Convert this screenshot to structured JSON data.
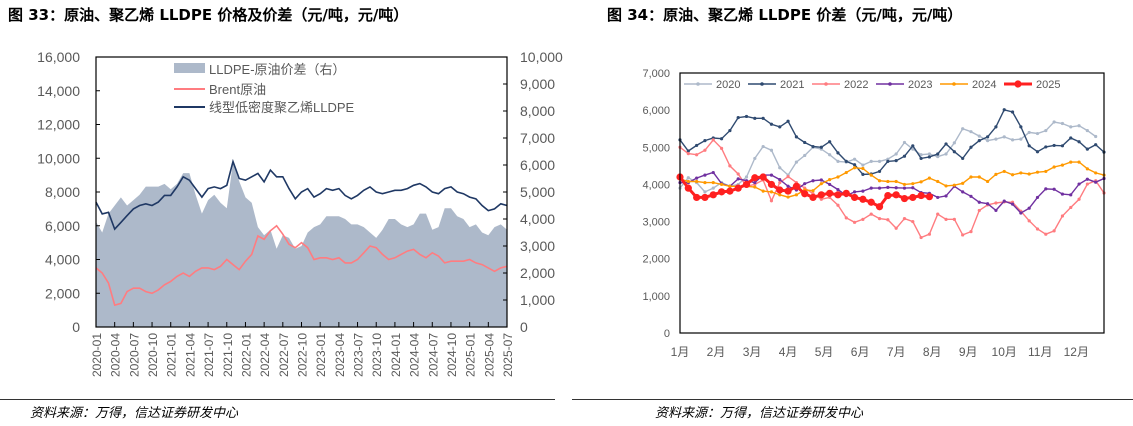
{
  "left": {
    "title": "图 33：原油、聚乙烯 LLDPE 价格及价差（元/吨，元/吨）",
    "source": "资料来源：万得，信达证券研发中心"
  },
  "right": {
    "title": "图 34：原油、聚乙烯 LLDPE 价差（元/吨，元/吨）",
    "source": "资料来源：万得，信达证券研发中心"
  },
  "chart_data": [
    {
      "type": "line+area",
      "x_start": "2020-01",
      "x_end": "2025-07",
      "x_step": "month",
      "xticks": [
        "2020-01",
        "2020-04",
        "2020-07",
        "2020-10",
        "2021-01",
        "2021-04",
        "2021-07",
        "2021-10",
        "2022-01",
        "2022-04",
        "2022-07",
        "2022-10",
        "2023-01",
        "2023-04",
        "2023-07",
        "2023-10",
        "2024-01",
        "2024-04",
        "2024-07",
        "2024-10",
        "2025-01",
        "2025-04",
        "2025-07"
      ],
      "ylim_left": [
        0,
        16000
      ],
      "yticks_left": [
        "0",
        "2,000",
        "4,000",
        "6,000",
        "8,000",
        "10,000",
        "12,000",
        "14,000",
        "16,000"
      ],
      "ylim_right": [
        0,
        10000
      ],
      "yticks_right": [
        "0",
        "1,000",
        "2,000",
        "3,000",
        "4,000",
        "5,000",
        "6,000",
        "7,000",
        "8,000",
        "9,000",
        "10,000"
      ],
      "legend": "top-center",
      "series": [
        {
          "name": "LLDPE-原油价差（右）",
          "kind": "area",
          "axis": "right",
          "color": "#adb9ca",
          "values": [
            3900,
            3500,
            4200,
            4500,
            4800,
            4500,
            4700,
            4900,
            5200,
            5200,
            5200,
            5300,
            5100,
            5300,
            5700,
            5700,
            4900,
            4200,
            4700,
            4900,
            4600,
            4400,
            6100,
            5400,
            4800,
            4600,
            3700,
            3400,
            3600,
            2900,
            3400,
            3300,
            2900,
            3000,
            3500,
            3700,
            3800,
            4100,
            4100,
            4100,
            4000,
            3800,
            3800,
            3700,
            3500,
            3300,
            3600,
            4000,
            4000,
            3800,
            3700,
            3800,
            4200,
            4200,
            3600,
            3700,
            4400,
            4400,
            4100,
            4000,
            3700,
            3800,
            3500,
            3400,
            3700,
            3800,
            3600
          ]
        },
        {
          "name": "Brent原油",
          "kind": "line",
          "axis": "left",
          "color": "#ff7c80",
          "values": [
            3500,
            3200,
            2600,
            1300,
            1400,
            2100,
            2300,
            2300,
            2100,
            2000,
            2200,
            2500,
            2700,
            3000,
            3200,
            3000,
            3300,
            3500,
            3500,
            3400,
            3600,
            4000,
            3700,
            3400,
            3900,
            4300,
            5400,
            5200,
            5700,
            6000,
            5500,
            4900,
            4700,
            5000,
            4700,
            4000,
            4100,
            4100,
            4000,
            4100,
            3800,
            3800,
            4000,
            4400,
            4800,
            4700,
            4300,
            4000,
            4100,
            4300,
            4500,
            4600,
            4300,
            4100,
            4400,
            4200,
            3800,
            3900,
            3900,
            3900,
            4000,
            3800,
            3700,
            3500,
            3300,
            3500,
            3600
          ]
        },
        {
          "name": "线型低密度聚乙烯LLDPE",
          "kind": "line",
          "axis": "left",
          "color": "#1f3864",
          "values": [
            7400,
            6700,
            6800,
            5800,
            6200,
            6600,
            7000,
            7200,
            7300,
            7200,
            7400,
            7800,
            7800,
            8300,
            8900,
            8700,
            8200,
            7700,
            8200,
            8300,
            8200,
            8400,
            9800,
            8800,
            8700,
            8900,
            9100,
            8600,
            9300,
            8900,
            8900,
            8200,
            7600,
            8000,
            8200,
            7700,
            7900,
            8200,
            8100,
            8200,
            7800,
            7600,
            7800,
            8100,
            8300,
            8000,
            7900,
            8000,
            8100,
            8100,
            8200,
            8400,
            8500,
            8300,
            8000,
            7900,
            8200,
            8300,
            8000,
            7900,
            7700,
            7600,
            7200,
            6900,
            7000,
            7300,
            7200
          ]
        }
      ]
    },
    {
      "type": "line",
      "x_step": "week",
      "xticks": [
        "1月",
        "2月",
        "3月",
        "4月",
        "5月",
        "6月",
        "7月",
        "8月",
        "9月",
        "10月",
        "11月",
        "12月"
      ],
      "ylim": [
        0,
        7000
      ],
      "yticks": [
        "0",
        "1,000",
        "2,000",
        "3,000",
        "4,000",
        "5,000",
        "6,000",
        "7,000"
      ],
      "legend": "top",
      "series": [
        {
          "name": "2020",
          "color": "#adb9ca",
          "values": [
            3900,
            4180,
            4050,
            3800,
            3900,
            4050,
            3950,
            4000,
            4200,
            4700,
            5020,
            4920,
            4450,
            4250,
            4600,
            4780,
            5000,
            4950,
            4800,
            4620,
            4600,
            4680,
            4520,
            4620,
            4620,
            4680,
            4820,
            5130,
            4950,
            4800,
            4820,
            4750,
            4820,
            5120,
            5500,
            5420,
            5300,
            5180,
            5220,
            5280,
            5200,
            5220,
            5400,
            5370,
            5450,
            5680,
            5640,
            5550,
            5580,
            5450,
            5290
          ]
        },
        {
          "name": "2021",
          "color": "#2f4a70",
          "values": [
            5200,
            4900,
            5050,
            5180,
            5250,
            5230,
            5450,
            5800,
            5830,
            5780,
            5780,
            5620,
            5550,
            5700,
            5280,
            5130,
            5020,
            5000,
            5150,
            4850,
            4620,
            4530,
            4270,
            4280,
            4350,
            4620,
            4640,
            4760,
            5040,
            4700,
            4740,
            4820,
            5090,
            4880,
            4700,
            5000,
            5180,
            5280,
            5550,
            6010,
            5950,
            5550,
            5040,
            4880,
            5010,
            5050,
            5040,
            5250,
            5150,
            4950,
            5070,
            4870
          ]
        },
        {
          "name": "2022",
          "color": "#ff7c80",
          "values": [
            5000,
            4830,
            4800,
            4920,
            5200,
            4970,
            4500,
            4280,
            3950,
            4000,
            4120,
            3560,
            4050,
            4210,
            4050,
            3900,
            3750,
            3600,
            3650,
            3440,
            3100,
            2980,
            3060,
            3200,
            3080,
            3050,
            2820,
            3080,
            3000,
            2570,
            2660,
            3200,
            3060,
            3060,
            2640,
            2730,
            3300,
            3450,
            3500,
            3530,
            3520,
            3280,
            3020,
            2800,
            2660,
            2750,
            3150,
            3380,
            3600,
            4010,
            4100,
            3770
          ]
        },
        {
          "name": "2023",
          "color": "#7030a0",
          "values": [
            4050,
            4050,
            4170,
            4250,
            4320,
            4020,
            3950,
            4150,
            4100,
            4050,
            4250,
            4250,
            4130,
            3950,
            3850,
            4020,
            4100,
            4120,
            4000,
            3860,
            3700,
            3800,
            3820,
            3900,
            3900,
            3920,
            3910,
            3900,
            3910,
            3780,
            3760,
            3650,
            3690,
            3950,
            3800,
            3680,
            3520,
            3480,
            3300,
            3550,
            3470,
            3230,
            3360,
            3650,
            3880,
            3870,
            3740,
            3720,
            4010,
            4140,
            4060,
            4160
          ]
        },
        {
          "name": "2024",
          "color": "#ff9900",
          "values": [
            4150,
            4080,
            4080,
            4050,
            4050,
            4000,
            3950,
            3950,
            3950,
            3930,
            3820,
            3800,
            3720,
            3660,
            3720,
            3850,
            3830,
            4020,
            4130,
            4200,
            4320,
            4450,
            4430,
            4250,
            4100,
            4080,
            4080,
            4000,
            4020,
            4070,
            4170,
            4080,
            3960,
            3980,
            4030,
            4200,
            4200,
            4080,
            4270,
            4350,
            4260,
            4310,
            4280,
            4330,
            4350,
            4470,
            4520,
            4600,
            4600,
            4420,
            4310,
            4250
          ]
        },
        {
          "name": "2025",
          "color": "#ff2020",
          "values": [
            4200,
            3900,
            3650,
            3650,
            3720,
            3800,
            3820,
            3900,
            4000,
            4180,
            4200,
            4000,
            3850,
            3820,
            3950,
            3750,
            3650,
            3720,
            3760,
            3720,
            3760,
            3650,
            3600,
            3520,
            3400,
            3700,
            3720,
            3620,
            3650,
            3700,
            3670
          ]
        }
      ]
    }
  ]
}
